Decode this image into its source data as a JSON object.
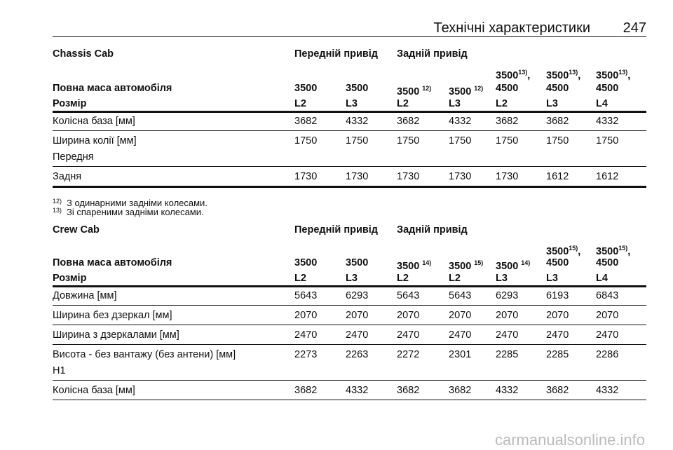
{
  "header": {
    "title": "Технічні характеристики",
    "page": "247"
  },
  "tables": [
    {
      "title": "Chassis Cab",
      "drive_front": "Передній привід",
      "drive_rear": "Задній привід",
      "weight_label": "Повна маса автомобіля",
      "weights": [
        {
          "t": "3500"
        },
        {
          "t": "3500"
        },
        {
          "t": "3500",
          "sup": "12)"
        },
        {
          "t": "3500",
          "sup": "12)"
        },
        {
          "top": "3500",
          "sup": "13)",
          "tail": ",",
          "t": "4500"
        },
        {
          "top": "3500",
          "sup": "13)",
          "tail": ",",
          "t": "4500"
        },
        {
          "top": "3500",
          "sup": "13)",
          "tail": ",",
          "t": "4500"
        }
      ],
      "size_label": "Розмір",
      "sizes": [
        "L2",
        "L3",
        "L2",
        "L3",
        "L2",
        "L3",
        "L4"
      ],
      "rows": [
        {
          "label": [
            "Колісна база [мм]"
          ],
          "values": [
            3682,
            4332,
            3682,
            4332,
            3682,
            3682,
            4332
          ]
        },
        {
          "label": [
            "Ширина колії [мм]",
            "Передня"
          ],
          "values": [
            1750,
            1750,
            1750,
            1750,
            1750,
            1750,
            1750
          ]
        },
        {
          "label": [
            "Задня"
          ],
          "values": [
            1730,
            1730,
            1730,
            1730,
            1730,
            1612,
            1612
          ]
        }
      ]
    },
    {
      "title": "Crew Cab",
      "drive_front": "Передній привід",
      "drive_rear": "Задній привід",
      "weight_label": "Повна маса автомобіля",
      "weights": [
        {
          "t": "3500"
        },
        {
          "t": "3500"
        },
        {
          "t": "3500",
          "sup": "14)"
        },
        {
          "t": "3500",
          "sup": "15)"
        },
        {
          "t": "3500",
          "sup": "14)"
        },
        {
          "top": "3500",
          "sup": "15)",
          "tail": ",",
          "t": "4500"
        },
        {
          "top": "3500",
          "sup": "15)",
          "tail": ",",
          "t": "4500"
        }
      ],
      "size_label": "Розмір",
      "sizes": [
        "L2",
        "L3",
        "L2",
        "L2",
        "L3",
        "L3",
        "L4"
      ],
      "rows": [
        {
          "label": [
            "Довжина [мм]"
          ],
          "values": [
            5643,
            6293,
            5643,
            5643,
            6293,
            6193,
            6843
          ]
        },
        {
          "label": [
            "Ширина без дзеркал [мм]"
          ],
          "values": [
            2070,
            2070,
            2070,
            2070,
            2070,
            2070,
            2070
          ]
        },
        {
          "label": [
            "Ширина з дзеркалами [мм]"
          ],
          "values": [
            2470,
            2470,
            2470,
            2470,
            2470,
            2470,
            2470
          ]
        },
        {
          "label": [
            "Висота - без вантажу (без антени) [мм]",
            "H1"
          ],
          "values": [
            2273,
            2263,
            2272,
            2301,
            2285,
            2285,
            2286
          ]
        },
        {
          "label": [
            "Колісна база [мм]"
          ],
          "values": [
            3682,
            4332,
            3682,
            3682,
            4332,
            3682,
            4332
          ]
        }
      ]
    }
  ],
  "footnotes": [
    {
      "n": "12)",
      "text": "З одинарними задніми колесами."
    },
    {
      "n": "13)",
      "text": "Зі спареними задніми колесами."
    }
  ],
  "watermark": "carmanualsonline.info"
}
